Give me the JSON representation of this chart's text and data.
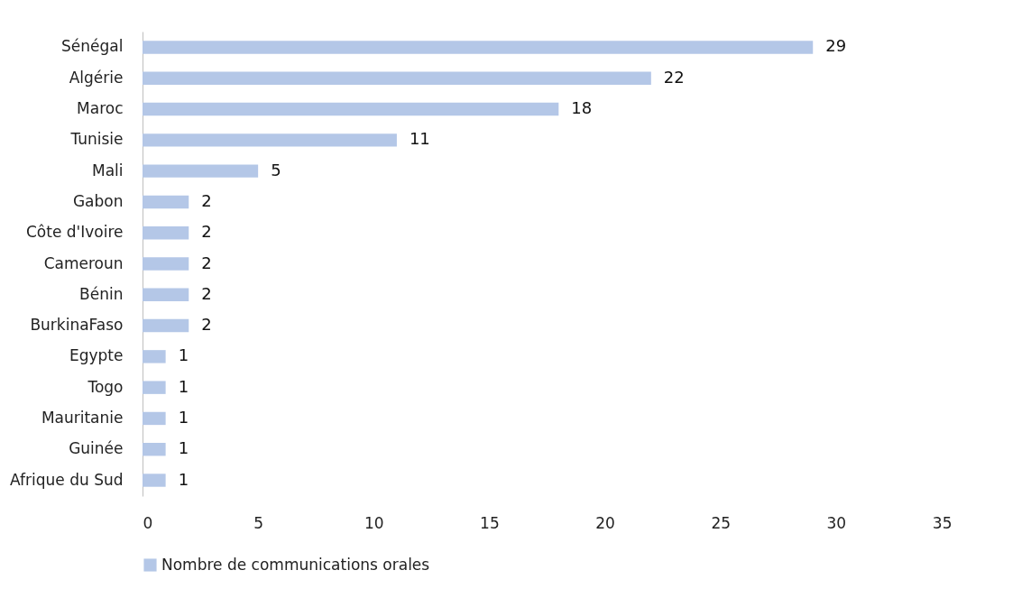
{
  "chart_data": {
    "type": "bar",
    "orientation": "horizontal",
    "categories": [
      "Sénégal",
      "Algérie",
      "Maroc",
      "Tunisie",
      "Mali",
      "Gabon",
      "Côte d'Ivoire",
      "Cameroun",
      "Bénin",
      "BurkinaFaso",
      "Egypte ",
      "Togo",
      "Mauritanie",
      "Guinée",
      "Afrique du Sud"
    ],
    "series": [
      {
        "name": "Nombre de communications orales",
        "color": "#b4c7e7",
        "values": [
          29,
          22,
          18,
          11,
          5,
          2,
          2,
          2,
          2,
          2,
          1,
          1,
          1,
          1,
          1
        ]
      }
    ],
    "xlim": [
      0,
      35
    ],
    "xticks": [
      0,
      5,
      10,
      15,
      20,
      25,
      30,
      35
    ],
    "grid": false,
    "legend": "bottom",
    "data_labels": true
  }
}
